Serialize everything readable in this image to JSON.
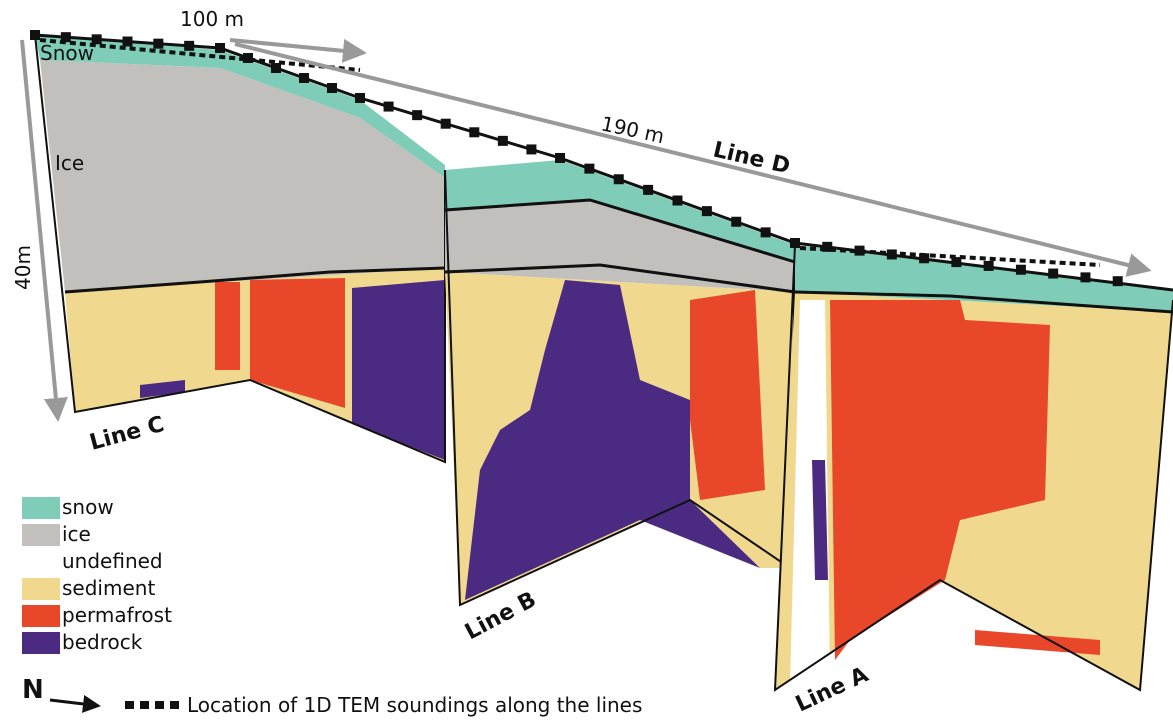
{
  "scale_labels": {
    "horizontal_short": "100 m",
    "horizontal_long": "190 m",
    "vertical": "40m"
  },
  "layer_labels": {
    "snow": "Snow",
    "ice": "Ice"
  },
  "line_labels": {
    "line_d": "Line D",
    "line_c": "Line C",
    "line_b": "Line B",
    "line_a": "Line A"
  },
  "legend": {
    "items": [
      {
        "label": "snow",
        "color": "#7fcdb8"
      },
      {
        "label": "ice",
        "color": "#c2c0bc"
      },
      {
        "label": "undefined",
        "color": "#ffffff"
      },
      {
        "label": "sediment",
        "color": "#f0d98e"
      },
      {
        "label": "permafrost",
        "color": "#e8472a"
      },
      {
        "label": "bedrock",
        "color": "#4b2a82"
      }
    ]
  },
  "north": "N",
  "soundings_note": "Location of 1D TEM soundings along the lines"
}
